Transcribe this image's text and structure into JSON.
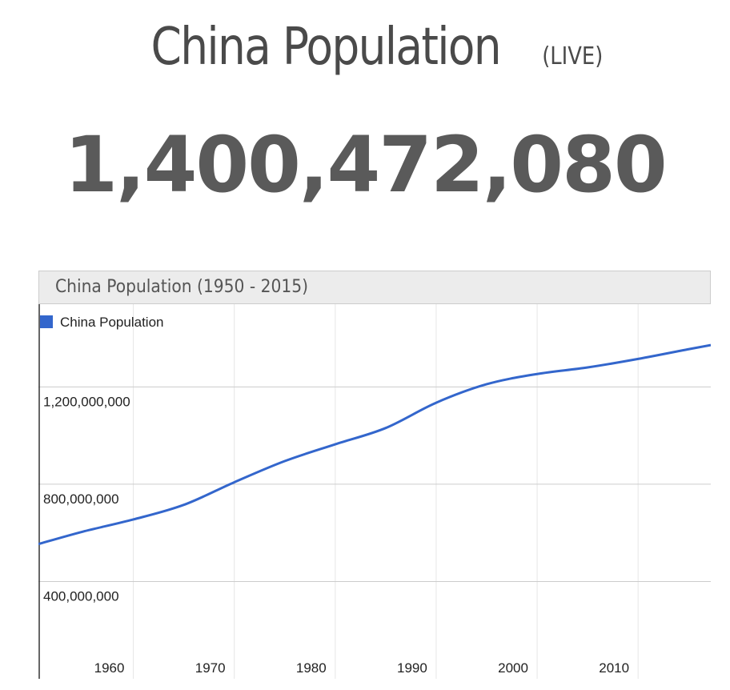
{
  "header": {
    "title": "China Population",
    "live_label": "(LIVE)",
    "counter": "1,400,472,080"
  },
  "chart_data": {
    "type": "line",
    "title": "China Population (1950 - 2015)",
    "xlabel": "",
    "ylabel": "",
    "legend": {
      "placement": "top-left",
      "entries": [
        "China Population"
      ]
    },
    "grid": true,
    "xlim": [
      1950.6,
      2017.2
    ],
    "ylim": [
      0,
      1540000000
    ],
    "x_ticks": [
      1960,
      1970,
      1980,
      1990,
      2000,
      2010
    ],
    "x_tick_labels": [
      "1960",
      "1970",
      "1980",
      "1990",
      "2000",
      "2010"
    ],
    "y_ticks": [
      400000000,
      800000000,
      1200000000
    ],
    "y_tick_labels": [
      "400,000,000",
      "800,000,000",
      "1,200,000,000"
    ],
    "series": [
      {
        "name": "China Population",
        "color": "#3366cc",
        "x": [
          1950.6,
          1955,
          1960,
          1965,
          1970,
          1975,
          1980,
          1985,
          1990,
          1995,
          2000,
          2005,
          2010,
          2015,
          2017.2
        ],
        "y": [
          554000000,
          605000000,
          655000000,
          715000000,
          808000000,
          895000000,
          964000000,
          1031000000,
          1135000000,
          1211000000,
          1253000000,
          1280000000,
          1315000000,
          1355000000,
          1372000000
        ]
      }
    ]
  }
}
